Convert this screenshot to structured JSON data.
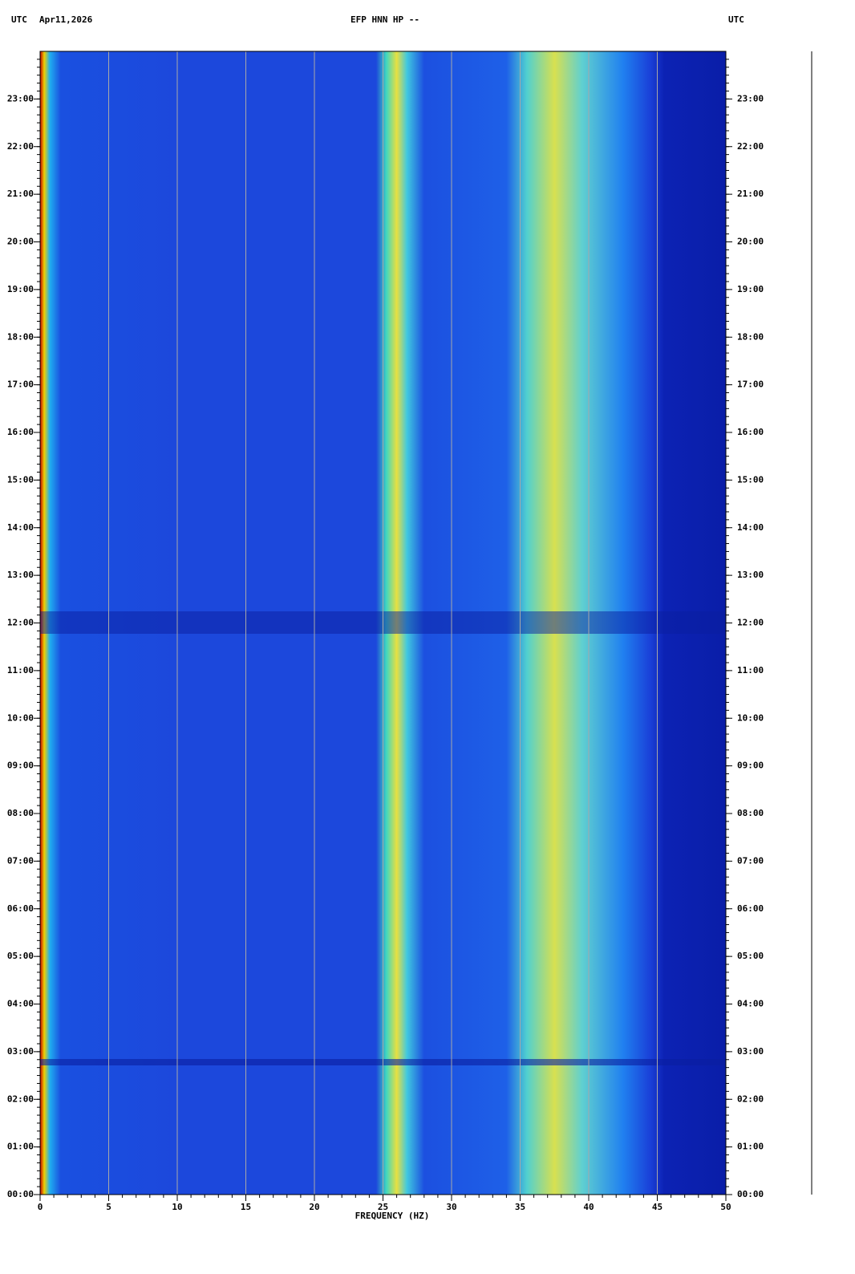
{
  "chart_data": {
    "type": "spectrogram",
    "title": "EFP HNN HP --",
    "left_label": "UTC",
    "date": "Apr11,2026",
    "right_label": "UTC",
    "x_label": "FREQUENCY (HZ)",
    "xlim": [
      0,
      50
    ],
    "xticks": [
      0,
      5,
      10,
      15,
      20,
      25,
      30,
      35,
      40,
      45,
      50
    ],
    "ylim": [
      0,
      24
    ],
    "yticks": [
      {
        "value": 0,
        "label": "00:00"
      },
      {
        "value": 1,
        "label": "01:00"
      },
      {
        "value": 2,
        "label": "02:00"
      },
      {
        "value": 3,
        "label": "03:00"
      },
      {
        "value": 4,
        "label": "04:00"
      },
      {
        "value": 5,
        "label": "05:00"
      },
      {
        "value": 6,
        "label": "06:00"
      },
      {
        "value": 7,
        "label": "07:00"
      },
      {
        "value": 8,
        "label": "08:00"
      },
      {
        "value": 9,
        "label": "09:00"
      },
      {
        "value": 10,
        "label": "10:00"
      },
      {
        "value": 11,
        "label": "11:00"
      },
      {
        "value": 12,
        "label": "12:00"
      },
      {
        "value": 13,
        "label": "13:00"
      },
      {
        "value": 14,
        "label": "14:00"
      },
      {
        "value": 15,
        "label": "15:00"
      },
      {
        "value": 16,
        "label": "16:00"
      },
      {
        "value": 17,
        "label": "17:00"
      },
      {
        "value": 18,
        "label": "18:00"
      },
      {
        "value": 19,
        "label": "19:00"
      },
      {
        "value": 20,
        "label": "20:00"
      },
      {
        "value": 21,
        "label": "21:00"
      },
      {
        "value": 22,
        "label": "22:00"
      },
      {
        "value": 23,
        "label": "23:00"
      }
    ],
    "grid": true
  }
}
